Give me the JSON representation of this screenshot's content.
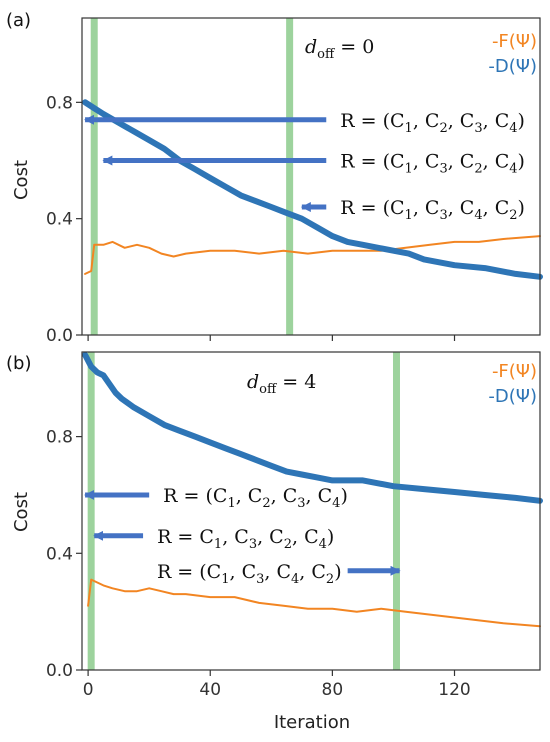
{
  "figure": {
    "xlabel": "Iteration"
  },
  "chart_data": [
    {
      "type": "line",
      "panel_label": "(a)",
      "ylabel": "Cost",
      "xlim": [
        -2,
        148
      ],
      "ylim": [
        0,
        1.09
      ],
      "x_ticks": [
        0,
        40,
        80,
        120
      ],
      "x_tick_labels": [
        "",
        "",
        "",
        ""
      ],
      "y_ticks": [
        0.0,
        0.4,
        0.8
      ],
      "y_tick_labels": [
        "0.0",
        "0.4",
        "0.8"
      ],
      "annotation": "d_off = 0",
      "legend_position": "top-right",
      "series": [
        {
          "name": "-F(Ψ)",
          "color": "#f28522",
          "points": [
            [
              -1,
              0.21
            ],
            [
              1,
              0.22
            ],
            [
              2,
              0.31
            ],
            [
              5,
              0.31
            ],
            [
              8,
              0.32
            ],
            [
              12,
              0.3
            ],
            [
              16,
              0.31
            ],
            [
              20,
              0.3
            ],
            [
              24,
              0.28
            ],
            [
              28,
              0.27
            ],
            [
              32,
              0.28
            ],
            [
              40,
              0.29
            ],
            [
              48,
              0.29
            ],
            [
              56,
              0.28
            ],
            [
              64,
              0.29
            ],
            [
              72,
              0.28
            ],
            [
              80,
              0.29
            ],
            [
              88,
              0.29
            ],
            [
              96,
              0.29
            ],
            [
              104,
              0.3
            ],
            [
              112,
              0.31
            ],
            [
              120,
              0.32
            ],
            [
              128,
              0.32
            ],
            [
              136,
              0.33
            ],
            [
              148,
              0.34
            ]
          ]
        },
        {
          "name": "-D(Ψ)",
          "color": "#2e75b6",
          "points": [
            [
              -1,
              0.8
            ],
            [
              2,
              0.78
            ],
            [
              5,
              0.76
            ],
            [
              10,
              0.73
            ],
            [
              15,
              0.7
            ],
            [
              20,
              0.67
            ],
            [
              25,
              0.64
            ],
            [
              30,
              0.6
            ],
            [
              35,
              0.57
            ],
            [
              40,
              0.54
            ],
            [
              45,
              0.51
            ],
            [
              50,
              0.48
            ],
            [
              55,
              0.46
            ],
            [
              60,
              0.44
            ],
            [
              65,
              0.42
            ],
            [
              70,
              0.4
            ],
            [
              75,
              0.37
            ],
            [
              80,
              0.34
            ],
            [
              85,
              0.32
            ],
            [
              90,
              0.31
            ],
            [
              95,
              0.3
            ],
            [
              100,
              0.29
            ],
            [
              105,
              0.28
            ],
            [
              110,
              0.26
            ],
            [
              115,
              0.25
            ],
            [
              120,
              0.24
            ],
            [
              130,
              0.23
            ],
            [
              140,
              0.21
            ],
            [
              148,
              0.2
            ]
          ]
        }
      ],
      "highlight_x": [
        2,
        66
      ],
      "arrows": [
        {
          "label_parts": [
            "R = (C",
            "1",
            ", C",
            "2",
            ", C",
            "3",
            ", C",
            "4",
            ")"
          ],
          "from": [
            78,
            0.74
          ],
          "to": [
            -1,
            0.74
          ]
        },
        {
          "label_parts": [
            "R = (C",
            "1",
            ", C",
            "3",
            ", C",
            "2",
            ", C",
            "4",
            ")"
          ],
          "from": [
            78,
            0.6
          ],
          "to": [
            5,
            0.6
          ]
        },
        {
          "label_parts": [
            "R = (C",
            "1",
            ", C",
            "3",
            ", C",
            "4",
            ", C",
            "2",
            ")"
          ],
          "from": [
            78,
            0.44
          ],
          "to": [
            70,
            0.44
          ]
        }
      ]
    },
    {
      "type": "line",
      "panel_label": "(b)",
      "ylabel": "Cost",
      "xlim": [
        -2,
        148
      ],
      "ylim": [
        0,
        1.09
      ],
      "x_ticks": [
        0,
        40,
        80,
        120
      ],
      "x_tick_labels": [
        "0",
        "40",
        "80",
        "120"
      ],
      "y_ticks": [
        0.0,
        0.4,
        0.8
      ],
      "y_tick_labels": [
        "0.0",
        "0.4",
        "0.8"
      ],
      "annotation": "d_off = 4",
      "legend_position": "top-right",
      "series": [
        {
          "name": "-F(Ψ)",
          "color": "#f28522",
          "points": [
            [
              0,
              0.22
            ],
            [
              1,
              0.31
            ],
            [
              3,
              0.3
            ],
            [
              5,
              0.29
            ],
            [
              8,
              0.28
            ],
            [
              12,
              0.27
            ],
            [
              16,
              0.27
            ],
            [
              20,
              0.28
            ],
            [
              24,
              0.27
            ],
            [
              28,
              0.26
            ],
            [
              32,
              0.26
            ],
            [
              40,
              0.25
            ],
            [
              48,
              0.25
            ],
            [
              56,
              0.23
            ],
            [
              64,
              0.22
            ],
            [
              72,
              0.21
            ],
            [
              80,
              0.21
            ],
            [
              88,
              0.2
            ],
            [
              96,
              0.21
            ],
            [
              104,
              0.2
            ],
            [
              112,
              0.19
            ],
            [
              120,
              0.18
            ],
            [
              128,
              0.17
            ],
            [
              136,
              0.16
            ],
            [
              148,
              0.15
            ]
          ]
        },
        {
          "name": "-D(Ψ)",
          "color": "#2e75b6",
          "points": [
            [
              -1,
              1.08
            ],
            [
              1,
              1.04
            ],
            [
              3,
              1.02
            ],
            [
              5,
              1.01
            ],
            [
              7,
              0.98
            ],
            [
              9,
              0.95
            ],
            [
              11,
              0.93
            ],
            [
              15,
              0.9
            ],
            [
              20,
              0.87
            ],
            [
              25,
              0.84
            ],
            [
              30,
              0.82
            ],
            [
              35,
              0.8
            ],
            [
              40,
              0.78
            ],
            [
              45,
              0.76
            ],
            [
              50,
              0.74
            ],
            [
              55,
              0.72
            ],
            [
              60,
              0.7
            ],
            [
              65,
              0.68
            ],
            [
              70,
              0.67
            ],
            [
              75,
              0.66
            ],
            [
              80,
              0.65
            ],
            [
              90,
              0.65
            ],
            [
              100,
              0.63
            ],
            [
              110,
              0.62
            ],
            [
              120,
              0.61
            ],
            [
              130,
              0.6
            ],
            [
              140,
              0.59
            ],
            [
              148,
              0.58
            ]
          ]
        }
      ],
      "highlight_x": [
        1,
        101
      ],
      "arrows": [
        {
          "label_parts": [
            "R = (C",
            "1",
            ", C",
            "2",
            ", C",
            "3",
            ", C",
            "4",
            ")"
          ],
          "from": [
            20,
            0.6
          ],
          "to": [
            -1,
            0.6
          ]
        },
        {
          "label_parts": [
            "R = C",
            "1",
            ", C",
            "3",
            ", C",
            "2",
            ", C",
            "4",
            ")"
          ],
          "from": [
            18,
            0.46
          ],
          "to": [
            2,
            0.46
          ]
        },
        {
          "label_parts": [
            "R = (C",
            "1",
            ", C",
            "3",
            ", C",
            "4",
            ", C",
            "2",
            ")"
          ],
          "from": [
            85,
            0.34
          ],
          "to": [
            102,
            0.34
          ]
        }
      ]
    }
  ]
}
